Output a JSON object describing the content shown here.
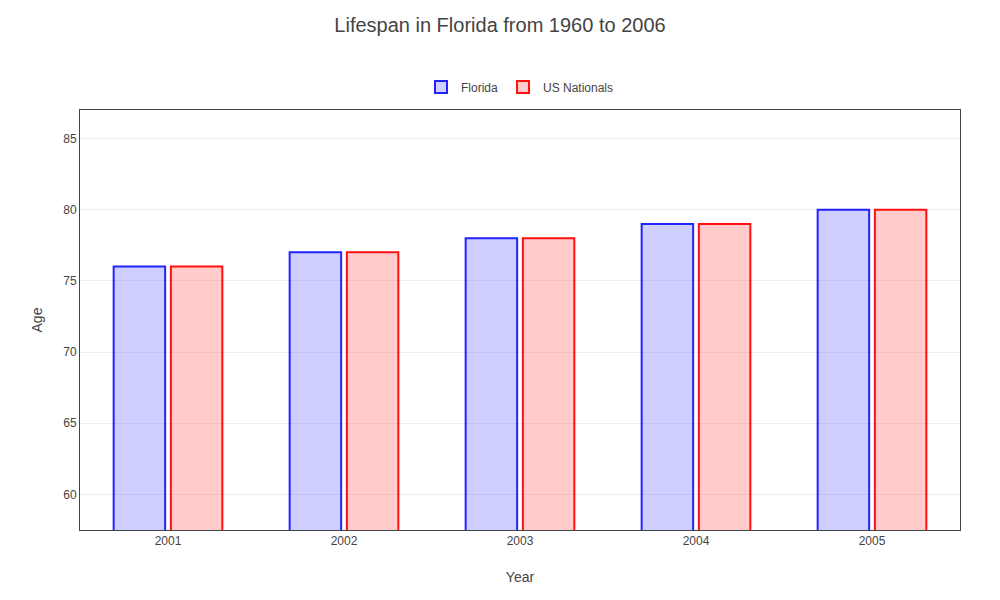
{
  "chart_data": {
    "type": "bar",
    "title": "Lifespan in Florida from 1960 to 2006",
    "xlabel": "Year",
    "ylabel": "Age",
    "categories": [
      "2001",
      "2002",
      "2003",
      "2004",
      "2005"
    ],
    "series": [
      {
        "name": "Florida",
        "color": "#2222ff",
        "values": [
          76,
          77,
          78,
          79,
          80
        ]
      },
      {
        "name": "US Nationals",
        "color": "#ff1111",
        "values": [
          76,
          77,
          78,
          79,
          80
        ]
      }
    ],
    "ylim": [
      57.5,
      87
    ],
    "yticks": [
      60,
      65,
      70,
      75,
      80,
      85
    ],
    "grid": true,
    "legend": "top"
  }
}
